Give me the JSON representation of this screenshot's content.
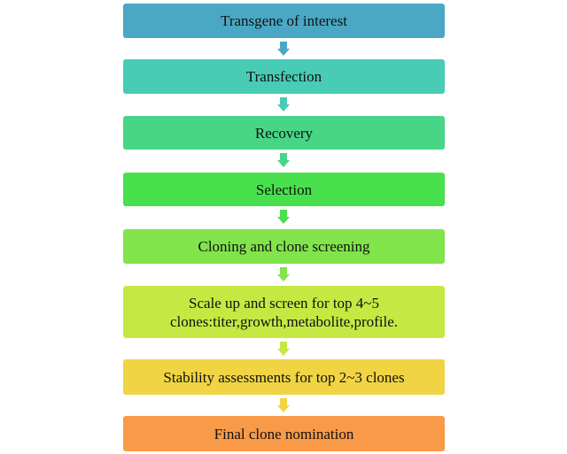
{
  "steps": [
    {
      "label": "Transgene of interest",
      "color": "#4aa8c4"
    },
    {
      "label": "Transfection",
      "color": "#48ccb6"
    },
    {
      "label": "Recovery",
      "color": "#48d586"
    },
    {
      "label": "Selection",
      "color": "#48e04c"
    },
    {
      "label": "Cloning and clone screening",
      "color": "#80e44a"
    },
    {
      "label": "Scale up and screen for top 4~5 clones:titer,growth,metabolite,profile.",
      "color": "#c6e842"
    },
    {
      "label": "Stability  assessments for top 2~3 clones",
      "color": "#f0d444"
    },
    {
      "label": "Final clone nomination",
      "color": "#f89a48"
    }
  ]
}
